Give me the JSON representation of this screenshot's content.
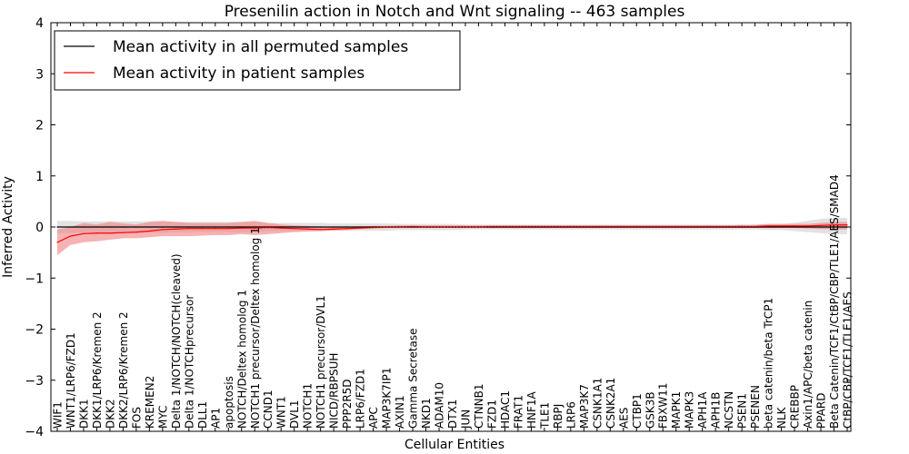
{
  "chart_data": {
    "type": "line",
    "title": "Presenilin action in Notch and Wnt signaling -- 463 samples",
    "xlabel": "Cellular Entities",
    "ylabel": "Inferred Activity",
    "ylim": [
      -4,
      4
    ],
    "yticks": [
      -4,
      -3,
      -2,
      -1,
      0,
      1,
      2,
      3,
      4
    ],
    "yticklabels": [
      "−4",
      "−3",
      "−2",
      "−1",
      "0",
      "1",
      "2",
      "3",
      "4"
    ],
    "grid": false,
    "legend_position": "top-left",
    "categories": [
      "WIF1",
      "WNT1/LRP6/FZD1",
      "DKK1",
      "DKK1/LRP6/Kremen 2",
      "DKK2",
      "DKK2/LRP6/Kremen 2",
      "FOS",
      "KREMEN2",
      "MYC",
      "Delta 1/NOTCH/NOTCH(cleaved)",
      "Delta 1/NOTCHprecursor",
      "DLL1",
      "AP1",
      "apoptosis",
      "NOTCH/Deltex homolog 1",
      "NOTCH1 precursor/Deltex homolog 1",
      "CCND1",
      "WNT1",
      "DVL1",
      "NOTCH1",
      "NOTCH1 precursor/DVL1",
      "NICD/RBPSUH",
      "PPP2R5D",
      "LRP6/FZD1",
      "APC",
      "MAP3K7IP1",
      "AXIN1",
      "Gamma Secretase",
      "NKD1",
      "ADAM10",
      "DTX1",
      "JUN",
      "CTNNB1",
      "FZD1",
      "HDAC1",
      "FRAT1",
      "HNF1A",
      "TLE1",
      "RBPJ",
      "LRP6",
      "MAP3K7",
      "CSNK1A1",
      "CSNK2A1",
      "AES",
      "CTBP1",
      "GSK3B",
      "FBXW11",
      "MAPK1",
      "MAPK3",
      "APH1A",
      "APH1B",
      "NCSTN",
      "PSEN1",
      "PSENEN",
      "beta catenin/beta TrCP1",
      "NLK",
      "CREBBP",
      "Axin1/APC/beta catenin",
      "PPARD",
      "Beta Catenin/TCF1/CtBP/CBP/TLE1/AES/SMAD4",
      "CtBP/CBP/TCF1/TLE1/AES"
    ],
    "series": [
      {
        "name": "Mean activity in all permuted samples",
        "color": "#000000",
        "values": [
          0,
          0,
          0,
          0,
          0,
          0,
          0,
          0,
          0,
          0,
          0,
          0,
          0,
          0,
          0,
          0,
          0,
          0,
          0,
          0,
          0,
          0,
          0,
          0,
          0,
          0,
          0,
          0,
          0,
          0,
          0,
          0,
          0,
          0,
          0,
          0,
          0,
          0,
          0,
          0,
          0,
          0,
          0,
          0,
          0,
          0,
          0,
          0,
          0,
          0,
          0,
          0,
          0,
          0,
          0,
          0,
          0,
          0,
          0,
          0,
          0
        ],
        "lower": [
          -0.12,
          -0.12,
          -0.11,
          -0.11,
          -0.11,
          -0.11,
          -0.11,
          -0.11,
          -0.11,
          -0.1,
          -0.1,
          -0.1,
          -0.1,
          -0.1,
          -0.1,
          -0.1,
          -0.08,
          -0.08,
          -0.08,
          -0.08,
          -0.08,
          -0.07,
          -0.07,
          -0.07,
          -0.07,
          -0.07,
          -0.06,
          -0.06,
          -0.06,
          -0.06,
          -0.06,
          -0.05,
          -0.05,
          -0.05,
          -0.05,
          -0.05,
          -0.05,
          -0.05,
          -0.05,
          -0.05,
          -0.05,
          -0.05,
          -0.05,
          -0.05,
          -0.05,
          -0.05,
          -0.05,
          -0.05,
          -0.05,
          -0.05,
          -0.05,
          -0.05,
          -0.05,
          -0.05,
          -0.06,
          -0.06,
          -0.08,
          -0.1,
          -0.12,
          -0.14,
          -0.14
        ],
        "upper": [
          0.12,
          0.12,
          0.11,
          0.11,
          0.11,
          0.11,
          0.11,
          0.11,
          0.11,
          0.1,
          0.1,
          0.1,
          0.1,
          0.1,
          0.1,
          0.1,
          0.08,
          0.08,
          0.08,
          0.08,
          0.08,
          0.07,
          0.07,
          0.07,
          0.07,
          0.07,
          0.06,
          0.06,
          0.06,
          0.06,
          0.06,
          0.05,
          0.05,
          0.05,
          0.05,
          0.05,
          0.05,
          0.05,
          0.05,
          0.05,
          0.05,
          0.05,
          0.05,
          0.05,
          0.05,
          0.05,
          0.05,
          0.05,
          0.05,
          0.05,
          0.05,
          0.05,
          0.05,
          0.05,
          0.06,
          0.06,
          0.08,
          0.12,
          0.16,
          0.18,
          0.18
        ]
      },
      {
        "name": "Mean activity in patient samples",
        "color": "#ff0000",
        "band_color": "#f08080",
        "values": [
          -0.3,
          -0.18,
          -0.13,
          -0.12,
          -0.12,
          -0.11,
          -0.1,
          -0.08,
          -0.05,
          -0.04,
          -0.03,
          -0.03,
          -0.03,
          -0.03,
          -0.02,
          -0.02,
          -0.01,
          -0.02,
          -0.03,
          -0.04,
          -0.05,
          -0.04,
          -0.03,
          -0.02,
          -0.01,
          0,
          0,
          0.01,
          0,
          0,
          0,
          0,
          0,
          0.01,
          0.01,
          0.01,
          0.01,
          0.01,
          0.01,
          0.01,
          0.01,
          0.01,
          0.01,
          0.01,
          0.01,
          0.01,
          0.01,
          0.01,
          0.01,
          0.01,
          0.01,
          0.01,
          0.01,
          0.01,
          0.02,
          0.02,
          0.02,
          0.02,
          0.03,
          0.04,
          0.04
        ],
        "lower": [
          -0.55,
          -0.35,
          -0.3,
          -0.28,
          -0.25,
          -0.22,
          -0.22,
          -0.2,
          -0.18,
          -0.18,
          -0.18,
          -0.17,
          -0.16,
          -0.16,
          -0.14,
          -0.16,
          -0.14,
          -0.12,
          -0.1,
          -0.09,
          -0.08,
          -0.07,
          -0.06,
          -0.04,
          -0.03,
          -0.02,
          -0.02,
          -0.02,
          -0.02,
          -0.02,
          -0.02,
          -0.02,
          -0.02,
          -0.02,
          -0.02,
          -0.02,
          -0.02,
          -0.02,
          -0.02,
          -0.02,
          -0.02,
          -0.02,
          -0.02,
          -0.02,
          -0.02,
          -0.02,
          -0.02,
          -0.02,
          -0.02,
          -0.02,
          -0.02,
          -0.02,
          -0.02,
          -0.02,
          -0.02,
          -0.02,
          -0.02,
          -0.03,
          -0.04,
          -0.05,
          -0.05
        ],
        "upper": [
          -0.05,
          0,
          0.08,
          0.05,
          0.1,
          0.07,
          0.05,
          0.1,
          0.12,
          0.1,
          0.08,
          0.08,
          0.08,
          0.08,
          0.1,
          0.12,
          0.08,
          0.05,
          0.03,
          0.02,
          0.01,
          0.01,
          0.01,
          0.01,
          0.02,
          0.02,
          0.03,
          0.03,
          0.03,
          0.03,
          0.03,
          0.03,
          0.03,
          0.03,
          0.03,
          0.03,
          0.03,
          0.03,
          0.03,
          0.03,
          0.03,
          0.03,
          0.03,
          0.03,
          0.03,
          0.03,
          0.03,
          0.03,
          0.03,
          0.03,
          0.03,
          0.03,
          0.04,
          0.04,
          0.06,
          0.06,
          0.06,
          0.06,
          0.08,
          0.1,
          0.1
        ]
      }
    ]
  }
}
